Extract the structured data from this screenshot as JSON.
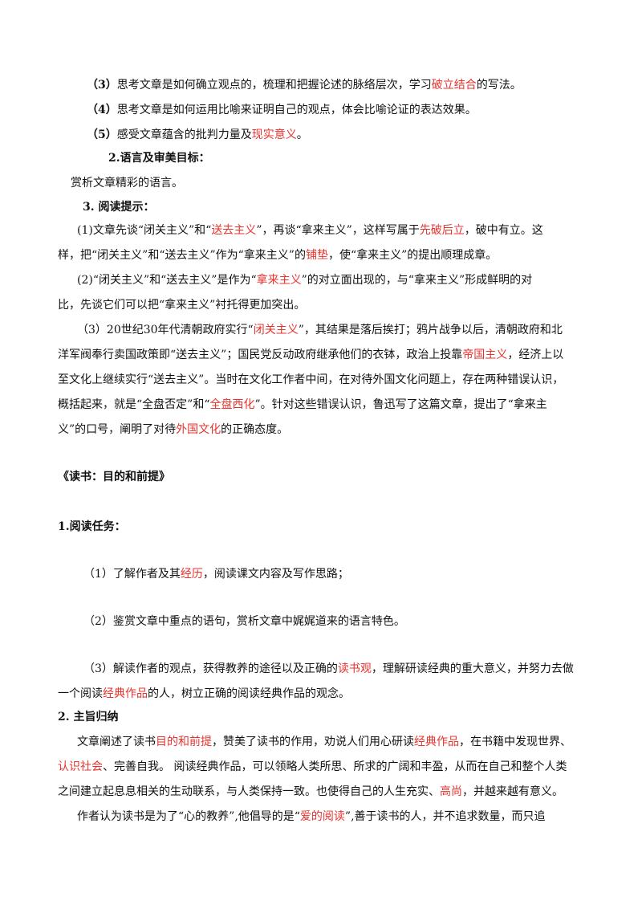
{
  "section1": {
    "item3": {
      "num": "（3）",
      "a": "思考文章是如何确立观点的，梳理和把握论述的脉络层次，学习",
      "hl": "破立结合",
      "b": "的写法。"
    },
    "item4": {
      "num": "（4）",
      "a": "思考文章是如何运用比喻来证明自己的观点，体会比喻论证的表达效果。"
    },
    "item5": {
      "num": "（5）",
      "a": "感受文章蕴含的批判力量及",
      "hl": "现实意义",
      "b": "。"
    },
    "goal2_title": "2.语言及审美目标：",
    "goal2_text": "赏析文章精彩的语言。",
    "tips_title": "3. 阅读提示：",
    "p1": {
      "l1a": "(1)文章先谈“闭关主义”和“",
      "l1hl1": "送去主义",
      "l1b": "”，再谈“拿来主义”，这样写属于",
      "l1hl2": "先破后立",
      "l1c": "，破中有立。这",
      "l2a": "样，把“闭关主义”和“送去主义”作为“拿来主义”的",
      "l2hl": "铺垫",
      "l2b": "，使“拿来主义”的提出顺理成章。"
    },
    "p2": {
      "l1a": "(2)“闭关主义”和“送去主义”是作为“",
      "l1hl": "拿来主义",
      "l1b": "”的对立面出现的，与“拿来主义”形成鲜明的对",
      "l2": "比，先谈它们可以把“拿来主义”衬托得更加突出。"
    },
    "p3": {
      "l1a": "（3）20世纪30年代清朝政府实行“",
      "l1hl": "闭关主义",
      "l1b": "”，其结果是落后挨打；鸦片战争以后，清朝政府和北",
      "l2a": "洋军阀奉行卖国政策即“送去主义”；国民党反动政府继承他们的衣钵，政治上投靠",
      "l2hl": "帝国主义",
      "l2b": "，经济上以",
      "l3": "至文化上继续实行“送去主义”。当时在文化工作者中间，在对待外国文化问题上，存在两种错误认识，",
      "l4a": "概括起来，就是“全盘否定”和“",
      "l4hl": "全盘西化",
      "l4b": "”。针对这些错误认识，鲁迅写了这篇文章，提出了“拿来主",
      "l5a": "义”的口号，阐明了对待",
      "l5hl": "外国文化",
      "l5b": "的正确态度。"
    }
  },
  "section2": {
    "title": "《读书：目的和前提》",
    "task_title": "1.阅读任务：",
    "t1": {
      "a": "（1）了解作者及其",
      "hl": "经历",
      "b": "，阅读课文内容及写作思路；"
    },
    "t2": {
      "a": "（2）鉴赏文章中重点的语句，赏析文章中娓娓道来的语言特色。"
    },
    "t3": {
      "l1a": "（3）解读作者的观点，获得教养的途径以及正确的",
      "l1hl": "读书观",
      "l1b": "，理解研读经典的重大意义，并努力去做",
      "l2a": "一个阅读",
      "l2hl": "经典作品",
      "l2b": "的人，树立正确的阅读经典作品的观念。"
    },
    "theme_title": "2. 主旨归纳",
    "theme": {
      "l1a": "文章阐述了读书",
      "l1hl1": "目的和前提",
      "l1b": "，赞美了读书的作用，劝说人们用心研读",
      "l1hl2": "经典作品",
      "l1c": "，在书籍中发现世界、",
      "l2hl": "认识社会",
      "l2a": "、完善自我。   阅读经典作品，可以领略人类所思、所求的广阔和丰盈，从而在自己和整个人类",
      "l3": "之间建立起息息相关的生动联系，与人类保持一致。也使得自己的人生充实、",
      "l3hl": "高尚",
      "l3b": "，并越来越有意义。",
      "l4a": "作者认为读书是为了“心的教养”,他倡导的是“",
      "l4hl": "爱的阅读",
      "l4b": "”,善于读书的人，并不追求数量，而只追"
    }
  },
  "colors": {
    "highlight": "#e8322d",
    "text": "#111111"
  }
}
